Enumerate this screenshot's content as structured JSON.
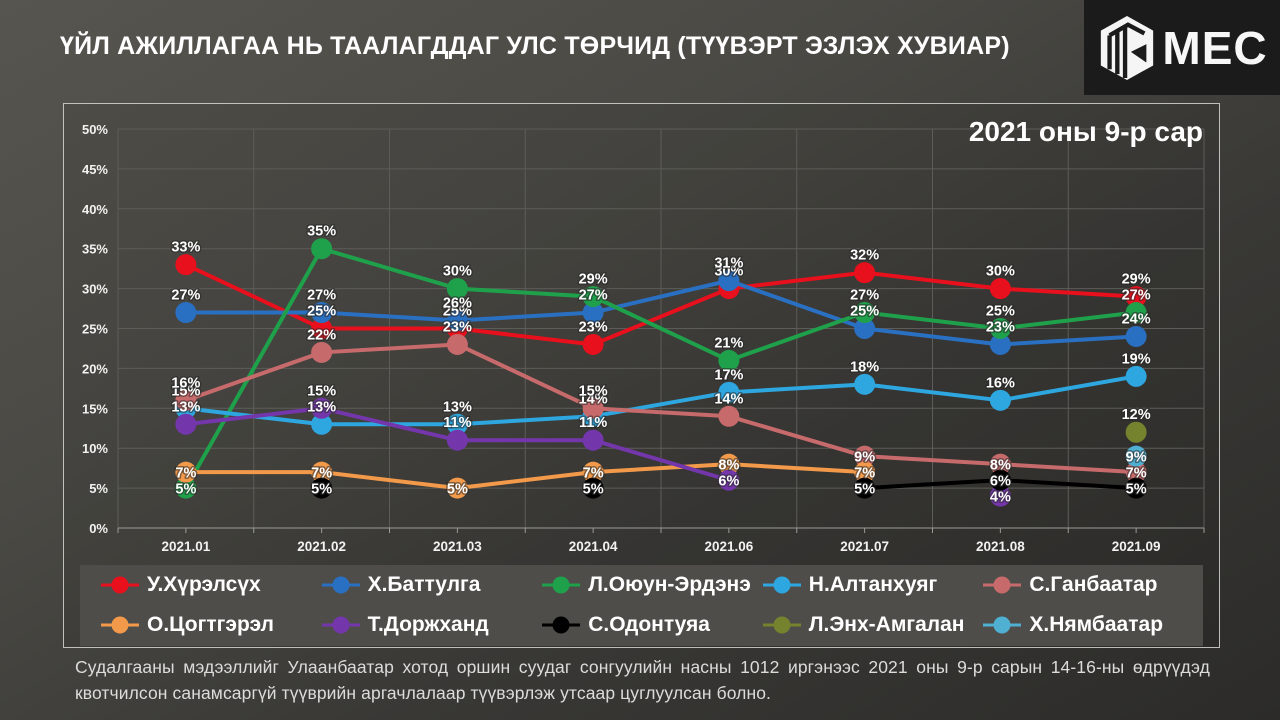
{
  "header": {
    "title": "ҮЙЛ АЖИЛЛАГАА НЬ ТААЛАГДДАГ УЛС ТӨРЧИД (ТҮҮВЭРТ ЭЗЛЭХ ХУВИАР)",
    "logo_text": "MEC"
  },
  "chart_data": {
    "type": "line",
    "title": "ҮЙЛ АЖИЛЛАГАА НЬ ТААЛАГДДАГ УЛС ТӨРЧИД (ТҮҮВЭРТ ЭЗЛЭХ ХУВИАР)",
    "annotation": "2021 оны 9-р сар",
    "categories": [
      "2021.01",
      "2021.02",
      "2021.03",
      "2021.04",
      "2021.06",
      "2021.07",
      "2021.08",
      "2021.09"
    ],
    "ylim": [
      0,
      50
    ],
    "y_tick_step": 5,
    "y_tick_suffix": "%",
    "value_suffix": "%",
    "grid": true,
    "legend_position": "bottom",
    "series": [
      {
        "name": "У.Хүрэлсүх",
        "color": "#e8101c",
        "values": [
          33,
          25,
          25,
          23,
          30,
          32,
          30,
          29
        ]
      },
      {
        "name": "Х.Баттулга",
        "color": "#2a70c2",
        "values": [
          27,
          27,
          26,
          27,
          31,
          25,
          23,
          24
        ]
      },
      {
        "name": "Л.Оюун-Эрдэнэ",
        "color": "#1fa14b",
        "values": [
          5,
          35,
          30,
          29,
          21,
          27,
          25,
          27
        ]
      },
      {
        "name": "Н.Алтанхуяг",
        "color": "#2ea7e0",
        "values": [
          15,
          13,
          13,
          14,
          17,
          18,
          16,
          19
        ]
      },
      {
        "name": "С.Ганбаатар",
        "color": "#c76a6b",
        "values": [
          16,
          22,
          23,
          15,
          14,
          9,
          8,
          7
        ]
      },
      {
        "name": "О.Цогтгэрэл",
        "color": "#f2994a",
        "values": [
          7,
          7,
          5,
          7,
          8,
          7,
          null,
          null
        ]
      },
      {
        "name": "Т.Доржханд",
        "color": "#7436ab",
        "values": [
          13,
          15,
          11,
          11,
          6,
          null,
          4,
          null
        ]
      },
      {
        "name": "С.Одонтуяа",
        "color": "#000000",
        "values": [
          null,
          5,
          null,
          5,
          null,
          5,
          6,
          5
        ]
      },
      {
        "name": "Л.Энх-Амгалан",
        "color": "#75832f",
        "values": [
          null,
          null,
          null,
          null,
          null,
          null,
          null,
          12
        ]
      },
      {
        "name": "Х.Нямбаатар",
        "color": "#4fb0d2",
        "values": [
          null,
          null,
          null,
          null,
          null,
          null,
          null,
          9
        ]
      }
    ]
  },
  "footer": {
    "note": "Судалгааны мэдээллийг Улаанбаатар хотод оршин суудаг сонгуулийн насны 1012 иргэнээс 2021 оны 9-р сарын 14-16-ны өдрүүдэд квотчилсон санамсаргүй түүврийн аргачлалаар түүвэрлэж утсаар цуглуулсан болно."
  }
}
